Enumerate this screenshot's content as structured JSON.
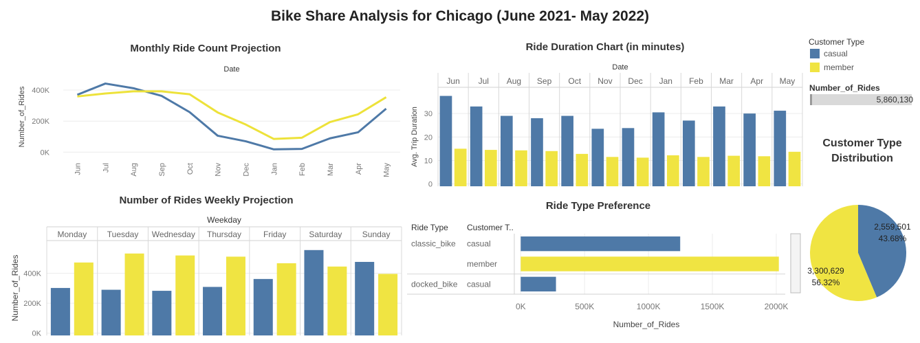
{
  "dashboard": {
    "title": "Bike Share Analysis for Chicago (June 2021- May 2022)"
  },
  "colors": {
    "casual": "#4e79a7",
    "member": "#f0e442",
    "member_line": "#ede23a"
  },
  "legend": {
    "title": "Customer Type",
    "items": [
      {
        "label": "casual",
        "color": "#4e79a7"
      },
      {
        "label": "member",
        "color": "#f0e442"
      }
    ],
    "rides_title": "Number_of_Rides",
    "rides_value": "5,860,130"
  },
  "chart_data": [
    {
      "id": "monthly",
      "type": "line",
      "title": "Monthly Ride Count Projection",
      "header": "Date",
      "ylabel": "Number_of_Rides",
      "categories": [
        "Jun",
        "Jul",
        "Aug",
        "Sep",
        "Oct",
        "Nov",
        "Dec",
        "Jan",
        "Feb",
        "Mar",
        "Apr",
        "May"
      ],
      "yticks": [
        0,
        200000,
        400000
      ],
      "ytick_labels": [
        "0K",
        "200K",
        "400K"
      ],
      "ylim": [
        -25000,
        480000
      ],
      "series": [
        {
          "name": "casual",
          "values": [
            370000,
            442000,
            412000,
            363000,
            258000,
            106000,
            70000,
            18000,
            21000,
            89000,
            128000,
            280000
          ]
        },
        {
          "name": "member",
          "values": [
            359000,
            378000,
            392000,
            392000,
            373000,
            256000,
            178000,
            85000,
            93000,
            194000,
            244000,
            354000
          ]
        }
      ]
    },
    {
      "id": "duration",
      "type": "bar",
      "title": "Ride Duration Chart (in minutes)",
      "header": "Date",
      "ylabel": "Avg. Trip Duration",
      "categories": [
        "Jun",
        "Jul",
        "Aug",
        "Sep",
        "Oct",
        "Nov",
        "Dec",
        "Jan",
        "Feb",
        "Mar",
        "Apr",
        "May"
      ],
      "yticks": [
        0,
        10,
        20,
        30
      ],
      "ylim": [
        -1,
        40
      ],
      "series": [
        {
          "name": "casual",
          "values": [
            37.5,
            33.0,
            29.0,
            28.0,
            29.0,
            23.5,
            23.8,
            30.5,
            27.0,
            33.0,
            30.0,
            31.2
          ]
        },
        {
          "name": "member",
          "values": [
            15.0,
            14.5,
            14.3,
            14.0,
            12.8,
            11.5,
            11.2,
            12.2,
            11.5,
            12.0,
            11.8,
            13.7
          ]
        }
      ]
    },
    {
      "id": "weekly",
      "type": "bar",
      "title": "Number of Rides Weekly Projection",
      "header": "Weekday",
      "ylabel": "Number_of_Rides",
      "categories": [
        "Monday",
        "Tuesday",
        "Wednesday",
        "Thursday",
        "Friday",
        "Saturday",
        "Sunday"
      ],
      "yticks": [
        0,
        200000,
        400000
      ],
      "ytick_labels": [
        "0K",
        "200K",
        "400K"
      ],
      "ylim": [
        -15000,
        600000
      ],
      "series": [
        {
          "name": "casual",
          "values": [
            302000,
            290000,
            283000,
            309000,
            362000,
            555000,
            476000
          ]
        },
        {
          "name": "member",
          "values": [
            472000,
            532000,
            519000,
            511000,
            467000,
            445000,
            396000
          ]
        }
      ]
    },
    {
      "id": "ridetype",
      "type": "bar",
      "orientation": "horizontal",
      "title": "Ride Type Preference",
      "col1": "Ride Type",
      "col2": "Customer T..",
      "xlabel": "Number_of_Rides",
      "xticks": [
        0,
        500000,
        1000000,
        1500000,
        2000000
      ],
      "xtick_labels": [
        "0K",
        "500K",
        "1000K",
        "1500K",
        "2000K"
      ],
      "xlim": [
        -50000,
        2070000
      ],
      "rows": [
        {
          "ride_type": "classic_bike",
          "customer": "casual",
          "value": 1248000,
          "color": "#4e79a7"
        },
        {
          "ride_type": "",
          "customer": "member",
          "value": 2020000,
          "color": "#f0e442"
        },
        {
          "ride_type": "docked_bike",
          "customer": "casual",
          "value": 276000,
          "color": "#4e79a7"
        }
      ]
    },
    {
      "id": "pie",
      "type": "pie",
      "title_line1": "Customer Type",
      "title_line2": "Distribution",
      "slices": [
        {
          "name": "casual",
          "value": 2559501,
          "label": "2,559,501",
          "pct": "43.68%",
          "color": "#4e79a7"
        },
        {
          "name": "member",
          "value": 3300629,
          "label": "3,300,629",
          "pct": "56.32%",
          "color": "#f0e442"
        }
      ]
    }
  ]
}
